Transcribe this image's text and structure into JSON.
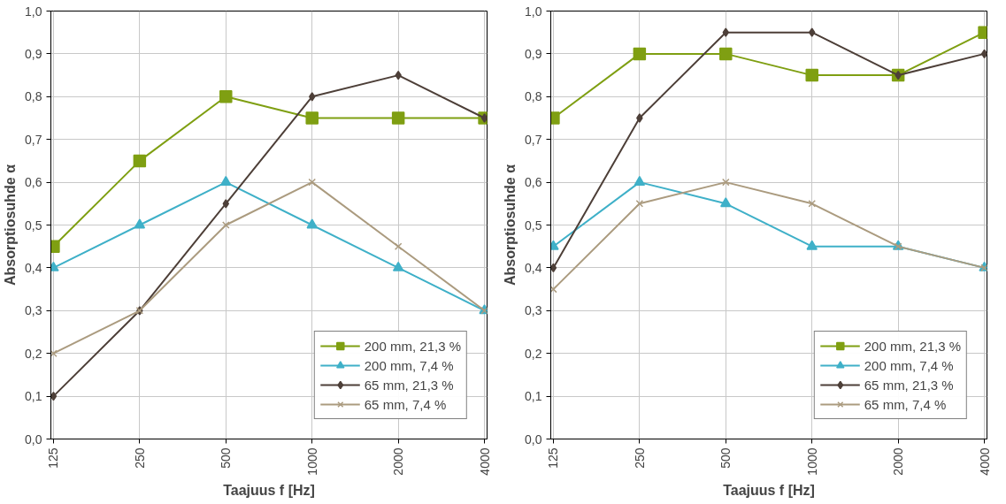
{
  "chart_data": [
    {
      "type": "line",
      "xlabel": "Taajuus f [Hz]",
      "ylabel": "Absorptiosuhde α",
      "categories": [
        "125",
        "250",
        "500",
        "1000",
        "2000",
        "4000"
      ],
      "ylim": [
        0,
        1
      ],
      "yticks": [
        {
          "value": 0,
          "label": "0,0"
        },
        {
          "value": 0.1,
          "label": "0,1"
        },
        {
          "value": 0.2,
          "label": "0,2"
        },
        {
          "value": 0.3,
          "label": "0,3"
        },
        {
          "value": 0.4,
          "label": "0,4"
        },
        {
          "value": 0.5,
          "label": "0,5"
        },
        {
          "value": 0.6,
          "label": "0,6"
        },
        {
          "value": 0.7,
          "label": "0,7"
        },
        {
          "value": 0.8,
          "label": "0,8"
        },
        {
          "value": 0.9,
          "label": "0,9"
        },
        {
          "value": 1,
          "label": "1,0"
        }
      ],
      "grid": true,
      "legend": "bottom right",
      "series": [
        {
          "name": "200 mm, 21,3 %",
          "color": "#7f9f12",
          "marker": "square",
          "values": [
            0.45,
            0.65,
            0.8,
            0.75,
            0.75,
            0.75
          ]
        },
        {
          "name": "200 mm, 7,4 %",
          "color": "#3fb0c8",
          "marker": "triangle",
          "values": [
            0.4,
            0.5,
            0.6,
            0.5,
            0.4,
            0.3
          ]
        },
        {
          "name": "65 mm, 21,3 %",
          "color": "#4d3f38",
          "marker": "diamond",
          "values": [
            0.1,
            0.3,
            0.55,
            0.8,
            0.85,
            0.75
          ]
        },
        {
          "name": "65 mm, 7,4 %",
          "color": "#ab9b7f",
          "marker": "cross",
          "values": [
            0.2,
            0.3,
            0.5,
            0.6,
            0.45,
            0.3
          ]
        }
      ]
    },
    {
      "type": "line",
      "xlabel": "Taajuus f [Hz]",
      "ylabel": "Absorptiosuhde α",
      "categories": [
        "125",
        "250",
        "500",
        "1000",
        "2000",
        "4000"
      ],
      "ylim": [
        0,
        1
      ],
      "yticks": [
        {
          "value": 0,
          "label": "0,0"
        },
        {
          "value": 0.1,
          "label": "0,1"
        },
        {
          "value": 0.2,
          "label": "0,2"
        },
        {
          "value": 0.3,
          "label": "0,3"
        },
        {
          "value": 0.4,
          "label": "0,4"
        },
        {
          "value": 0.5,
          "label": "0,5"
        },
        {
          "value": 0.6,
          "label": "0,6"
        },
        {
          "value": 0.7,
          "label": "0,7"
        },
        {
          "value": 0.8,
          "label": "0,8"
        },
        {
          "value": 0.9,
          "label": "0,9"
        },
        {
          "value": 1,
          "label": "1,0"
        }
      ],
      "grid": true,
      "legend": "bottom right",
      "series": [
        {
          "name": "200 mm, 21,3 %",
          "color": "#7f9f12",
          "marker": "square",
          "values": [
            0.75,
            0.9,
            0.9,
            0.85,
            0.85,
            0.95
          ]
        },
        {
          "name": "200 mm, 7,4 %",
          "color": "#3fb0c8",
          "marker": "triangle",
          "values": [
            0.45,
            0.6,
            0.55,
            0.45,
            0.45,
            0.4
          ]
        },
        {
          "name": "65 mm, 21,3 %",
          "color": "#4d3f38",
          "marker": "diamond",
          "values": [
            0.4,
            0.75,
            0.95,
            0.95,
            0.85,
            0.9
          ]
        },
        {
          "name": "65 mm, 7,4 %",
          "color": "#ab9b7f",
          "marker": "cross",
          "values": [
            0.35,
            0.55,
            0.6,
            0.55,
            0.45,
            0.4
          ]
        }
      ]
    }
  ]
}
